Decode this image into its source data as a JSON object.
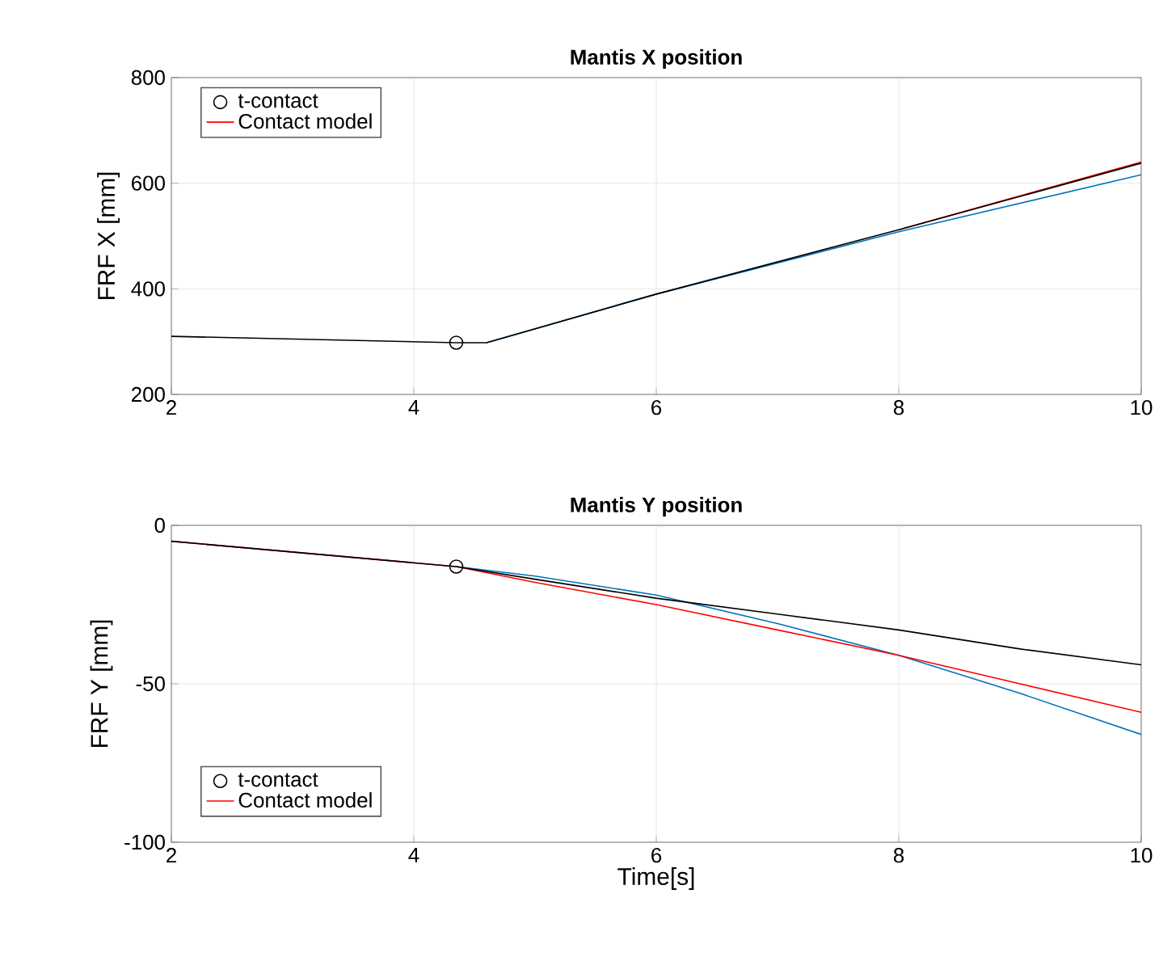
{
  "chart_data": [
    {
      "type": "line",
      "title": "Mantis X position",
      "ylabel": "FRF X [mm]",
      "xlim": [
        2,
        10
      ],
      "ylim": [
        200,
        800
      ],
      "xticks": [
        2,
        4,
        6,
        8,
        10
      ],
      "yticks": [
        200,
        400,
        600,
        800
      ],
      "grid": true,
      "legend": "top left",
      "series": [
        {
          "color": "#0072bd",
          "x": [
            4.6,
            6,
            8,
            10
          ],
          "values": [
            298,
            390,
            508,
            616
          ]
        },
        {
          "name": "t-contact",
          "type": "scatter",
          "marker": "circle",
          "color": "#000000",
          "x": [
            4.35
          ],
          "values": [
            298
          ]
        },
        {
          "name": "Contact model",
          "color": "#ff0000",
          "x": [
            8,
            10
          ],
          "values": [
            512,
            640
          ]
        },
        {
          "color": "#000000",
          "x": [
            2,
            4.35,
            4.6,
            6,
            8,
            10
          ],
          "values": [
            310,
            298,
            298,
            390,
            512,
            638
          ]
        }
      ]
    },
    {
      "type": "line",
      "title": "Mantis Y position",
      "xlabel": "Time[s]",
      "ylabel": "FRF Y [mm]",
      "xlim": [
        2,
        10
      ],
      "ylim": [
        -100,
        0
      ],
      "xticks": [
        2,
        4,
        6,
        8,
        10
      ],
      "yticks": [
        -100,
        -50,
        0
      ],
      "grid": true,
      "legend": "bottom left",
      "series": [
        {
          "color": "#0072bd",
          "x": [
            4.35,
            5,
            6,
            7,
            8,
            9,
            10
          ],
          "values": [
            -13,
            -16,
            -22,
            -31,
            -41,
            -53,
            -66
          ]
        },
        {
          "name": "t-contact",
          "type": "scatter",
          "marker": "circle",
          "color": "#000000",
          "x": [
            4.35
          ],
          "values": [
            -13
          ]
        },
        {
          "name": "Contact model",
          "color": "#ff0000",
          "x": [
            2,
            4.35,
            5,
            6,
            7,
            8,
            9,
            10
          ],
          "values": [
            -5,
            -13,
            -18,
            -25,
            -33,
            -41,
            -50,
            -59
          ]
        },
        {
          "color": "#000000",
          "x": [
            2,
            4.35,
            5,
            6,
            7,
            8,
            9,
            10
          ],
          "values": [
            -5,
            -13,
            -17,
            -23,
            -28,
            -33,
            -39,
            -44
          ]
        }
      ]
    }
  ]
}
